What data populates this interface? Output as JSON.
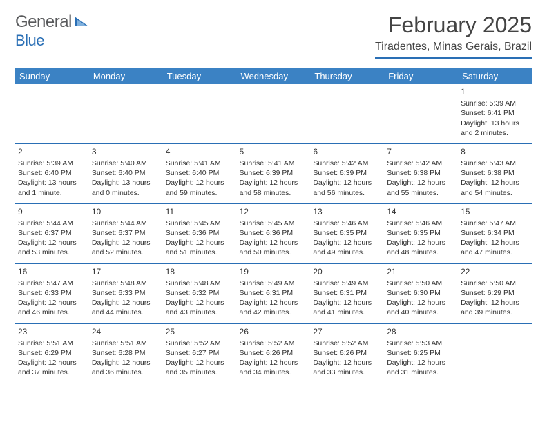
{
  "logo": {
    "word1": "General",
    "word2": "Blue"
  },
  "title": "February 2025",
  "location": "Tiradentes, Minas Gerais, Brazil",
  "colors": {
    "header_bg": "#3b82c4",
    "divider": "#2a6fb5",
    "text": "#333333",
    "logo_gray": "#58595b",
    "logo_blue": "#2a6fb5",
    "page_bg": "#ffffff"
  },
  "typography": {
    "title_size_pt": 24,
    "location_size_pt": 12,
    "dayname_size_pt": 10,
    "cell_size_pt": 8
  },
  "daynames": [
    "Sunday",
    "Monday",
    "Tuesday",
    "Wednesday",
    "Thursday",
    "Friday",
    "Saturday"
  ],
  "weeks": [
    [
      null,
      null,
      null,
      null,
      null,
      null,
      {
        "n": "1",
        "sr": "5:39 AM",
        "ss": "6:41 PM",
        "dl": "13 hours and 2 minutes."
      }
    ],
    [
      {
        "n": "2",
        "sr": "5:39 AM",
        "ss": "6:40 PM",
        "dl": "13 hours and 1 minute."
      },
      {
        "n": "3",
        "sr": "5:40 AM",
        "ss": "6:40 PM",
        "dl": "13 hours and 0 minutes."
      },
      {
        "n": "4",
        "sr": "5:41 AM",
        "ss": "6:40 PM",
        "dl": "12 hours and 59 minutes."
      },
      {
        "n": "5",
        "sr": "5:41 AM",
        "ss": "6:39 PM",
        "dl": "12 hours and 58 minutes."
      },
      {
        "n": "6",
        "sr": "5:42 AM",
        "ss": "6:39 PM",
        "dl": "12 hours and 56 minutes."
      },
      {
        "n": "7",
        "sr": "5:42 AM",
        "ss": "6:38 PM",
        "dl": "12 hours and 55 minutes."
      },
      {
        "n": "8",
        "sr": "5:43 AM",
        "ss": "6:38 PM",
        "dl": "12 hours and 54 minutes."
      }
    ],
    [
      {
        "n": "9",
        "sr": "5:44 AM",
        "ss": "6:37 PM",
        "dl": "12 hours and 53 minutes."
      },
      {
        "n": "10",
        "sr": "5:44 AM",
        "ss": "6:37 PM",
        "dl": "12 hours and 52 minutes."
      },
      {
        "n": "11",
        "sr": "5:45 AM",
        "ss": "6:36 PM",
        "dl": "12 hours and 51 minutes."
      },
      {
        "n": "12",
        "sr": "5:45 AM",
        "ss": "6:36 PM",
        "dl": "12 hours and 50 minutes."
      },
      {
        "n": "13",
        "sr": "5:46 AM",
        "ss": "6:35 PM",
        "dl": "12 hours and 49 minutes."
      },
      {
        "n": "14",
        "sr": "5:46 AM",
        "ss": "6:35 PM",
        "dl": "12 hours and 48 minutes."
      },
      {
        "n": "15",
        "sr": "5:47 AM",
        "ss": "6:34 PM",
        "dl": "12 hours and 47 minutes."
      }
    ],
    [
      {
        "n": "16",
        "sr": "5:47 AM",
        "ss": "6:33 PM",
        "dl": "12 hours and 46 minutes."
      },
      {
        "n": "17",
        "sr": "5:48 AM",
        "ss": "6:33 PM",
        "dl": "12 hours and 44 minutes."
      },
      {
        "n": "18",
        "sr": "5:48 AM",
        "ss": "6:32 PM",
        "dl": "12 hours and 43 minutes."
      },
      {
        "n": "19",
        "sr": "5:49 AM",
        "ss": "6:31 PM",
        "dl": "12 hours and 42 minutes."
      },
      {
        "n": "20",
        "sr": "5:49 AM",
        "ss": "6:31 PM",
        "dl": "12 hours and 41 minutes."
      },
      {
        "n": "21",
        "sr": "5:50 AM",
        "ss": "6:30 PM",
        "dl": "12 hours and 40 minutes."
      },
      {
        "n": "22",
        "sr": "5:50 AM",
        "ss": "6:29 PM",
        "dl": "12 hours and 39 minutes."
      }
    ],
    [
      {
        "n": "23",
        "sr": "5:51 AM",
        "ss": "6:29 PM",
        "dl": "12 hours and 37 minutes."
      },
      {
        "n": "24",
        "sr": "5:51 AM",
        "ss": "6:28 PM",
        "dl": "12 hours and 36 minutes."
      },
      {
        "n": "25",
        "sr": "5:52 AM",
        "ss": "6:27 PM",
        "dl": "12 hours and 35 minutes."
      },
      {
        "n": "26",
        "sr": "5:52 AM",
        "ss": "6:26 PM",
        "dl": "12 hours and 34 minutes."
      },
      {
        "n": "27",
        "sr": "5:52 AM",
        "ss": "6:26 PM",
        "dl": "12 hours and 33 minutes."
      },
      {
        "n": "28",
        "sr": "5:53 AM",
        "ss": "6:25 PM",
        "dl": "12 hours and 31 minutes."
      },
      null
    ]
  ],
  "labels": {
    "sunrise": "Sunrise: ",
    "sunset": "Sunset: ",
    "daylight": "Daylight: "
  }
}
